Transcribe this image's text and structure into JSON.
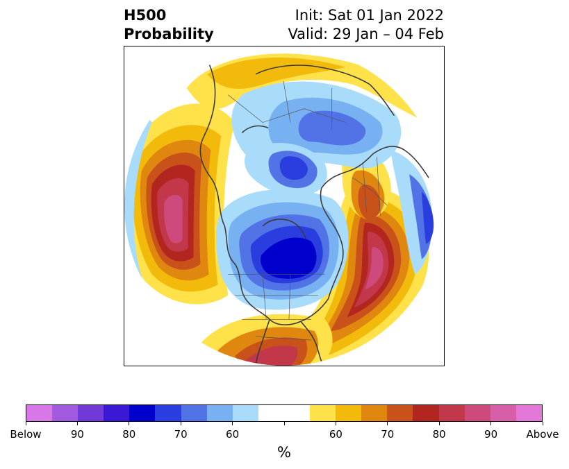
{
  "title": {
    "left_line1": "H500",
    "left_line2": "Probability",
    "right_line1": "Init: Sat 01 Jan 2022",
    "right_line2": "Valid: 29 Jan – 04 Feb"
  },
  "colorbar": {
    "colors": [
      "#d678e6",
      "#a25ae0",
      "#7239d9",
      "#3b18d4",
      "#0000cc",
      "#2a3ee0",
      "#5173e6",
      "#78b1f2",
      "#a9dcfb",
      "#ffffff",
      "#ffffff",
      "#ffe14a",
      "#f2ba0a",
      "#e0870f",
      "#c9521a",
      "#b3261f",
      "#c2384a",
      "#cf4a7c",
      "#d85ea8",
      "#e378d8"
    ],
    "tick_labels": [
      "Below",
      "90",
      "80",
      "70",
      "60",
      "",
      "60",
      "70",
      "80",
      "90",
      "Above"
    ],
    "units_label": "%"
  },
  "map": {
    "projection": "north-polar-stereographic",
    "colors": {
      "blue_light": "#a9dcfb",
      "blue_mid": "#78b1f2",
      "blue": "#5173e6",
      "blue_dark": "#2a3ee0",
      "blue_deep": "#0000cc",
      "yellow": "#ffe14a",
      "gold": "#f2ba0a",
      "orange": "#e0870f",
      "rust": "#c9521a",
      "red": "#b3261f",
      "crimson": "#c2384a",
      "rose": "#cf4a7c",
      "pink": "#d85ea8",
      "coast": "#3a3a3a"
    }
  }
}
